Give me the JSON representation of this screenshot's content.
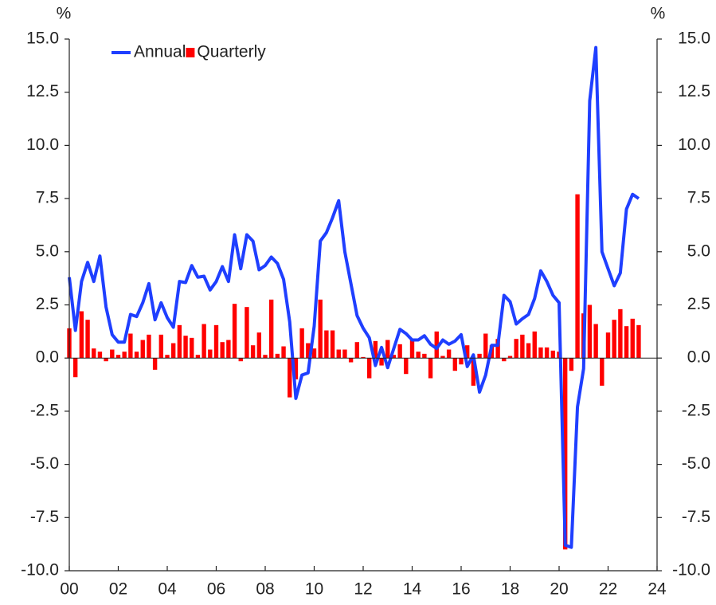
{
  "chart_data": {
    "type": "bar_line",
    "ylabel": "%",
    "y2label": "%",
    "x": [
      2000,
      2000.25,
      2000.5,
      2000.75,
      2001,
      2001.25,
      2001.5,
      2001.75,
      2002,
      2002.25,
      2002.5,
      2002.75,
      2003,
      2003.25,
      2003.5,
      2003.75,
      2004,
      2004.25,
      2004.5,
      2004.75,
      2005,
      2005.25,
      2005.5,
      2005.75,
      2006,
      2006.25,
      2006.5,
      2006.75,
      2007,
      2007.25,
      2007.5,
      2007.75,
      2008,
      2008.25,
      2008.5,
      2008.75,
      2009,
      2009.25,
      2009.5,
      2009.75,
      2010,
      2010.25,
      2010.5,
      2010.75,
      2011,
      2011.25,
      2011.5,
      2011.75,
      2012,
      2012.25,
      2012.5,
      2012.75,
      2013,
      2013.25,
      2013.5,
      2013.75,
      2014,
      2014.25,
      2014.5,
      2014.75,
      2015,
      2015.25,
      2015.5,
      2015.75,
      2016,
      2016.25,
      2016.5,
      2016.75,
      2017,
      2017.25,
      2017.5,
      2017.75,
      2018,
      2018.25,
      2018.5,
      2018.75,
      2019,
      2019.25,
      2019.5,
      2019.75,
      2020,
      2020.25,
      2020.5,
      2020.75,
      2021,
      2021.25,
      2021.5,
      2021.75,
      2022,
      2022.25,
      2022.5,
      2022.75,
      2023,
      2023.25
    ],
    "series": [
      {
        "name": "Annual",
        "type": "line",
        "color": "#1f3fff",
        "values": [
          3.8,
          1.3,
          3.6,
          4.5,
          3.6,
          4.8,
          2.4,
          1.1,
          0.75,
          0.75,
          2.05,
          1.95,
          2.6,
          3.5,
          1.8,
          2.6,
          1.9,
          1.45,
          3.6,
          3.55,
          4.35,
          3.8,
          3.85,
          3.2,
          3.6,
          4.3,
          3.6,
          5.8,
          4.2,
          5.8,
          5.5,
          4.15,
          4.35,
          4.75,
          4.45,
          3.7,
          1.7,
          -1.9,
          -0.8,
          -0.7,
          1.5,
          5.5,
          5.9,
          6.6,
          7.4,
          5.0,
          3.5,
          2.0,
          1.4,
          0.95,
          -0.35,
          0.5,
          -0.45,
          0.45,
          1.35,
          1.15,
          0.85,
          0.85,
          1.05,
          0.65,
          0.45,
          0.85,
          0.65,
          0.8,
          1.1,
          -0.4,
          0.15,
          -1.6,
          -0.8,
          0.6,
          0.6,
          2.95,
          2.65,
          1.6,
          1.85,
          2.05,
          2.8,
          4.1,
          3.6,
          2.95,
          2.6,
          -8.8,
          -8.9,
          -2.3,
          -0.5,
          12.1,
          14.6,
          5.0,
          4.2,
          3.4,
          4.0,
          7.0,
          7.7,
          7.5
        ]
      },
      {
        "name": "Quarterly",
        "type": "bar",
        "color": "#ff0000",
        "values": [
          1.4,
          -0.9,
          2.2,
          1.8,
          0.45,
          0.3,
          -0.15,
          0.4,
          0.15,
          0.3,
          1.15,
          0.3,
          0.85,
          1.1,
          -0.55,
          1.1,
          0.15,
          0.7,
          1.55,
          1.05,
          0.95,
          0.15,
          1.6,
          0.4,
          1.55,
          0.75,
          0.85,
          2.55,
          -0.15,
          2.4,
          0.6,
          1.2,
          0.15,
          2.75,
          0.2,
          0.55,
          -1.85,
          -1.0,
          1.4,
          0.7,
          0.45,
          2.75,
          1.3,
          1.3,
          0.4,
          0.4,
          -0.2,
          0.75,
          0.05,
          -0.95,
          0.8,
          -0.35,
          0.85,
          0.15,
          0.65,
          -0.75,
          0.85,
          0.3,
          0.2,
          -0.95,
          1.25,
          0.1,
          0.4,
          -0.6,
          -0.3,
          0.6,
          -1.3,
          0.2,
          1.15,
          0.6,
          0.9,
          -0.15,
          0.1,
          0.9,
          1.1,
          0.7,
          1.25,
          0.5,
          0.5,
          0.35,
          0.3,
          -9.0,
          -0.6,
          7.7,
          2.1,
          2.5,
          1.6,
          -1.3,
          1.2,
          1.8,
          2.3,
          1.5,
          1.85,
          1.55
        ]
      }
    ],
    "xlim": [
      2000,
      2024
    ],
    "xticks": [
      {
        "value": 2000,
        "label": "00"
      },
      {
        "value": 2002,
        "label": "02"
      },
      {
        "value": 2004,
        "label": "04"
      },
      {
        "value": 2006,
        "label": "06"
      },
      {
        "value": 2008,
        "label": "08"
      },
      {
        "value": 2010,
        "label": "10"
      },
      {
        "value": 2012,
        "label": "12"
      },
      {
        "value": 2014,
        "label": "14"
      },
      {
        "value": 2016,
        "label": "16"
      },
      {
        "value": 2018,
        "label": "18"
      },
      {
        "value": 2020,
        "label": "20"
      },
      {
        "value": 2022,
        "label": "22"
      },
      {
        "value": 2024,
        "label": "24"
      }
    ],
    "ylim": [
      -10,
      15
    ],
    "yticks": [
      {
        "value": -10,
        "label": "-10.0"
      },
      {
        "value": -7.5,
        "label": "-7.5"
      },
      {
        "value": -5,
        "label": "-5.0"
      },
      {
        "value": -2.5,
        "label": "-2.5"
      },
      {
        "value": 0,
        "label": "0.0"
      },
      {
        "value": 2.5,
        "label": "2.5"
      },
      {
        "value": 5,
        "label": "5.0"
      },
      {
        "value": 7.5,
        "label": "7.5"
      },
      {
        "value": 10,
        "label": "10.0"
      },
      {
        "value": 12.5,
        "label": "12.5"
      },
      {
        "value": 15,
        "label": "15.0"
      }
    ],
    "y2lim": [
      -10,
      15
    ],
    "y2ticks": [
      {
        "value": -10,
        "label": "-10.0"
      },
      {
        "value": -7.5,
        "label": "-7.5"
      },
      {
        "value": -5,
        "label": "-5.0"
      },
      {
        "value": -2.5,
        "label": "-2.5"
      },
      {
        "value": 0,
        "label": "0.0"
      },
      {
        "value": 2.5,
        "label": "2.5"
      },
      {
        "value": 5,
        "label": "5.0"
      },
      {
        "value": 7.5,
        "label": "7.5"
      },
      {
        "value": 10,
        "label": "10.0"
      },
      {
        "value": 12.5,
        "label": "12.5"
      },
      {
        "value": 15,
        "label": "15.0"
      }
    ],
    "legend": "upper left"
  }
}
